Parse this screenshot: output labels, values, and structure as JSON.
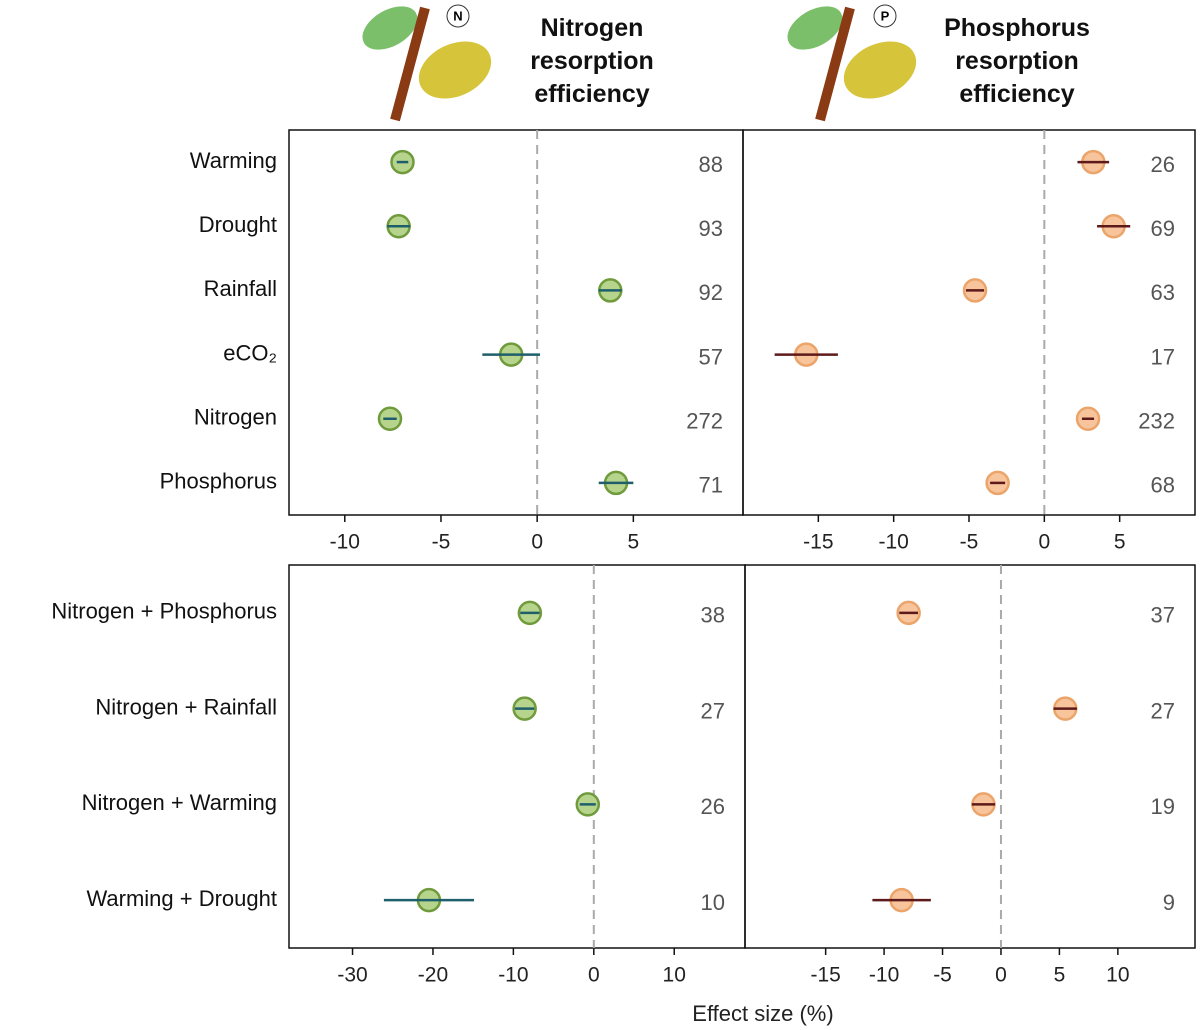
{
  "chart_data": [
    {
      "type": "forest",
      "title": "Nitrogen resorption efficiency",
      "categories": [
        "Warming",
        "Drought",
        "Rainfall",
        "eCO₂",
        "Nitrogen",
        "Phosphorus"
      ],
      "values": [
        -7.0,
        -7.2,
        3.8,
        -1.35,
        -7.65,
        4.1
      ],
      "errors": [
        0.3,
        0.6,
        0.6,
        1.5,
        0.35,
        0.9
      ],
      "counts": [
        88,
        93,
        92,
        57,
        272,
        71
      ],
      "xlim": [
        -12.9,
        10.7
      ],
      "xticks": [
        -10,
        -5,
        0,
        5
      ],
      "reference_line": 0,
      "color": "#b7d48c",
      "edge_color": "#6f9b3c",
      "bar_color": "#1f5f6b"
    },
    {
      "type": "forest",
      "title": "Phosphorus resorption efficiency",
      "values": [
        3.25,
        4.6,
        -4.6,
        -15.8,
        2.9,
        -3.1
      ],
      "errors": [
        1.05,
        1.1,
        0.6,
        2.1,
        0.4,
        0.5
      ],
      "counts": [
        26,
        69,
        63,
        17,
        232,
        68
      ],
      "xlim": [
        -20,
        10
      ],
      "xticks": [
        -15,
        -10,
        -5,
        0,
        5
      ],
      "reference_line": 0,
      "color": "#f8c49c",
      "edge_color": "#eba46a",
      "bar_color": "#5e1a1a"
    },
    {
      "type": "forest",
      "categories": [
        "Nitrogen + Phosphorus",
        "Nitrogen + Rainfall",
        "Nitrogen + Warming",
        "Warming + Drought"
      ],
      "values": [
        -7.95,
        -8.6,
        -0.75,
        -20.5
      ],
      "errors": [
        1.2,
        1.2,
        1.0,
        5.6
      ],
      "counts": [
        38,
        27,
        26,
        10
      ],
      "xlim": [
        -37.9,
        18.8
      ],
      "xticks": [
        -30,
        -20,
        -10,
        0,
        10
      ],
      "reference_line": 0,
      "xlabel": "Effect size (%)",
      "color": "#b7d48c",
      "edge_color": "#6f9b3c",
      "bar_color": "#1f5f6b"
    },
    {
      "type": "forest",
      "values": [
        -7.9,
        5.5,
        -1.5,
        -8.5
      ],
      "errors": [
        0.8,
        1.0,
        1.0,
        2.5
      ],
      "counts": [
        37,
        27,
        19,
        9
      ],
      "xlim": [
        -21.9,
        16.6
      ],
      "xticks": [
        -15,
        -10,
        -5,
        0,
        5,
        10
      ],
      "reference_line": 0,
      "color": "#f8c49c",
      "edge_color": "#eba46a",
      "bar_color": "#5e1a1a"
    }
  ]
}
